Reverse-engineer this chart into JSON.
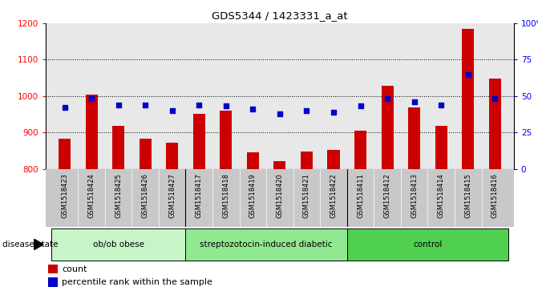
{
  "title": "GDS5344 / 1423331_a_at",
  "samples": [
    "GSM1518423",
    "GSM1518424",
    "GSM1518425",
    "GSM1518426",
    "GSM1518427",
    "GSM1518417",
    "GSM1518418",
    "GSM1518419",
    "GSM1518420",
    "GSM1518421",
    "GSM1518422",
    "GSM1518411",
    "GSM1518412",
    "GSM1518413",
    "GSM1518414",
    "GSM1518415",
    "GSM1518416"
  ],
  "counts": [
    882,
    1005,
    918,
    882,
    872,
    951,
    960,
    845,
    820,
    848,
    851,
    905,
    1028,
    968,
    918,
    1185,
    1048
  ],
  "percentile_ranks": [
    42,
    48,
    44,
    44,
    40,
    44,
    43,
    41,
    38,
    40,
    39,
    43,
    48,
    46,
    44,
    65,
    48
  ],
  "groups": [
    {
      "label": "ob/ob obese",
      "start": 0,
      "end": 5,
      "color": "#c8f5c8"
    },
    {
      "label": "streptozotocin-induced diabetic",
      "start": 5,
      "end": 11,
      "color": "#90e890"
    },
    {
      "label": "control",
      "start": 11,
      "end": 17,
      "color": "#50d050"
    }
  ],
  "bar_color": "#cc0000",
  "dot_color": "#0000cc",
  "ylim_left": [
    800,
    1200
  ],
  "ylim_right": [
    0,
    100
  ],
  "yticks_left": [
    800,
    900,
    1000,
    1100,
    1200
  ],
  "yticks_right": [
    0,
    25,
    50,
    75,
    100
  ],
  "ytick_labels_right": [
    "0",
    "25",
    "50",
    "75",
    "100%"
  ],
  "grid_values": [
    900,
    1000,
    1100
  ],
  "plot_bg_color": "#e8e8e8",
  "tick_area_bg_color": "#c8c8c8",
  "disease_state_label": "disease state",
  "legend_count_label": "count",
  "legend_percentile_label": "percentile rank within the sample",
  "group_boundaries": [
    5,
    11
  ]
}
